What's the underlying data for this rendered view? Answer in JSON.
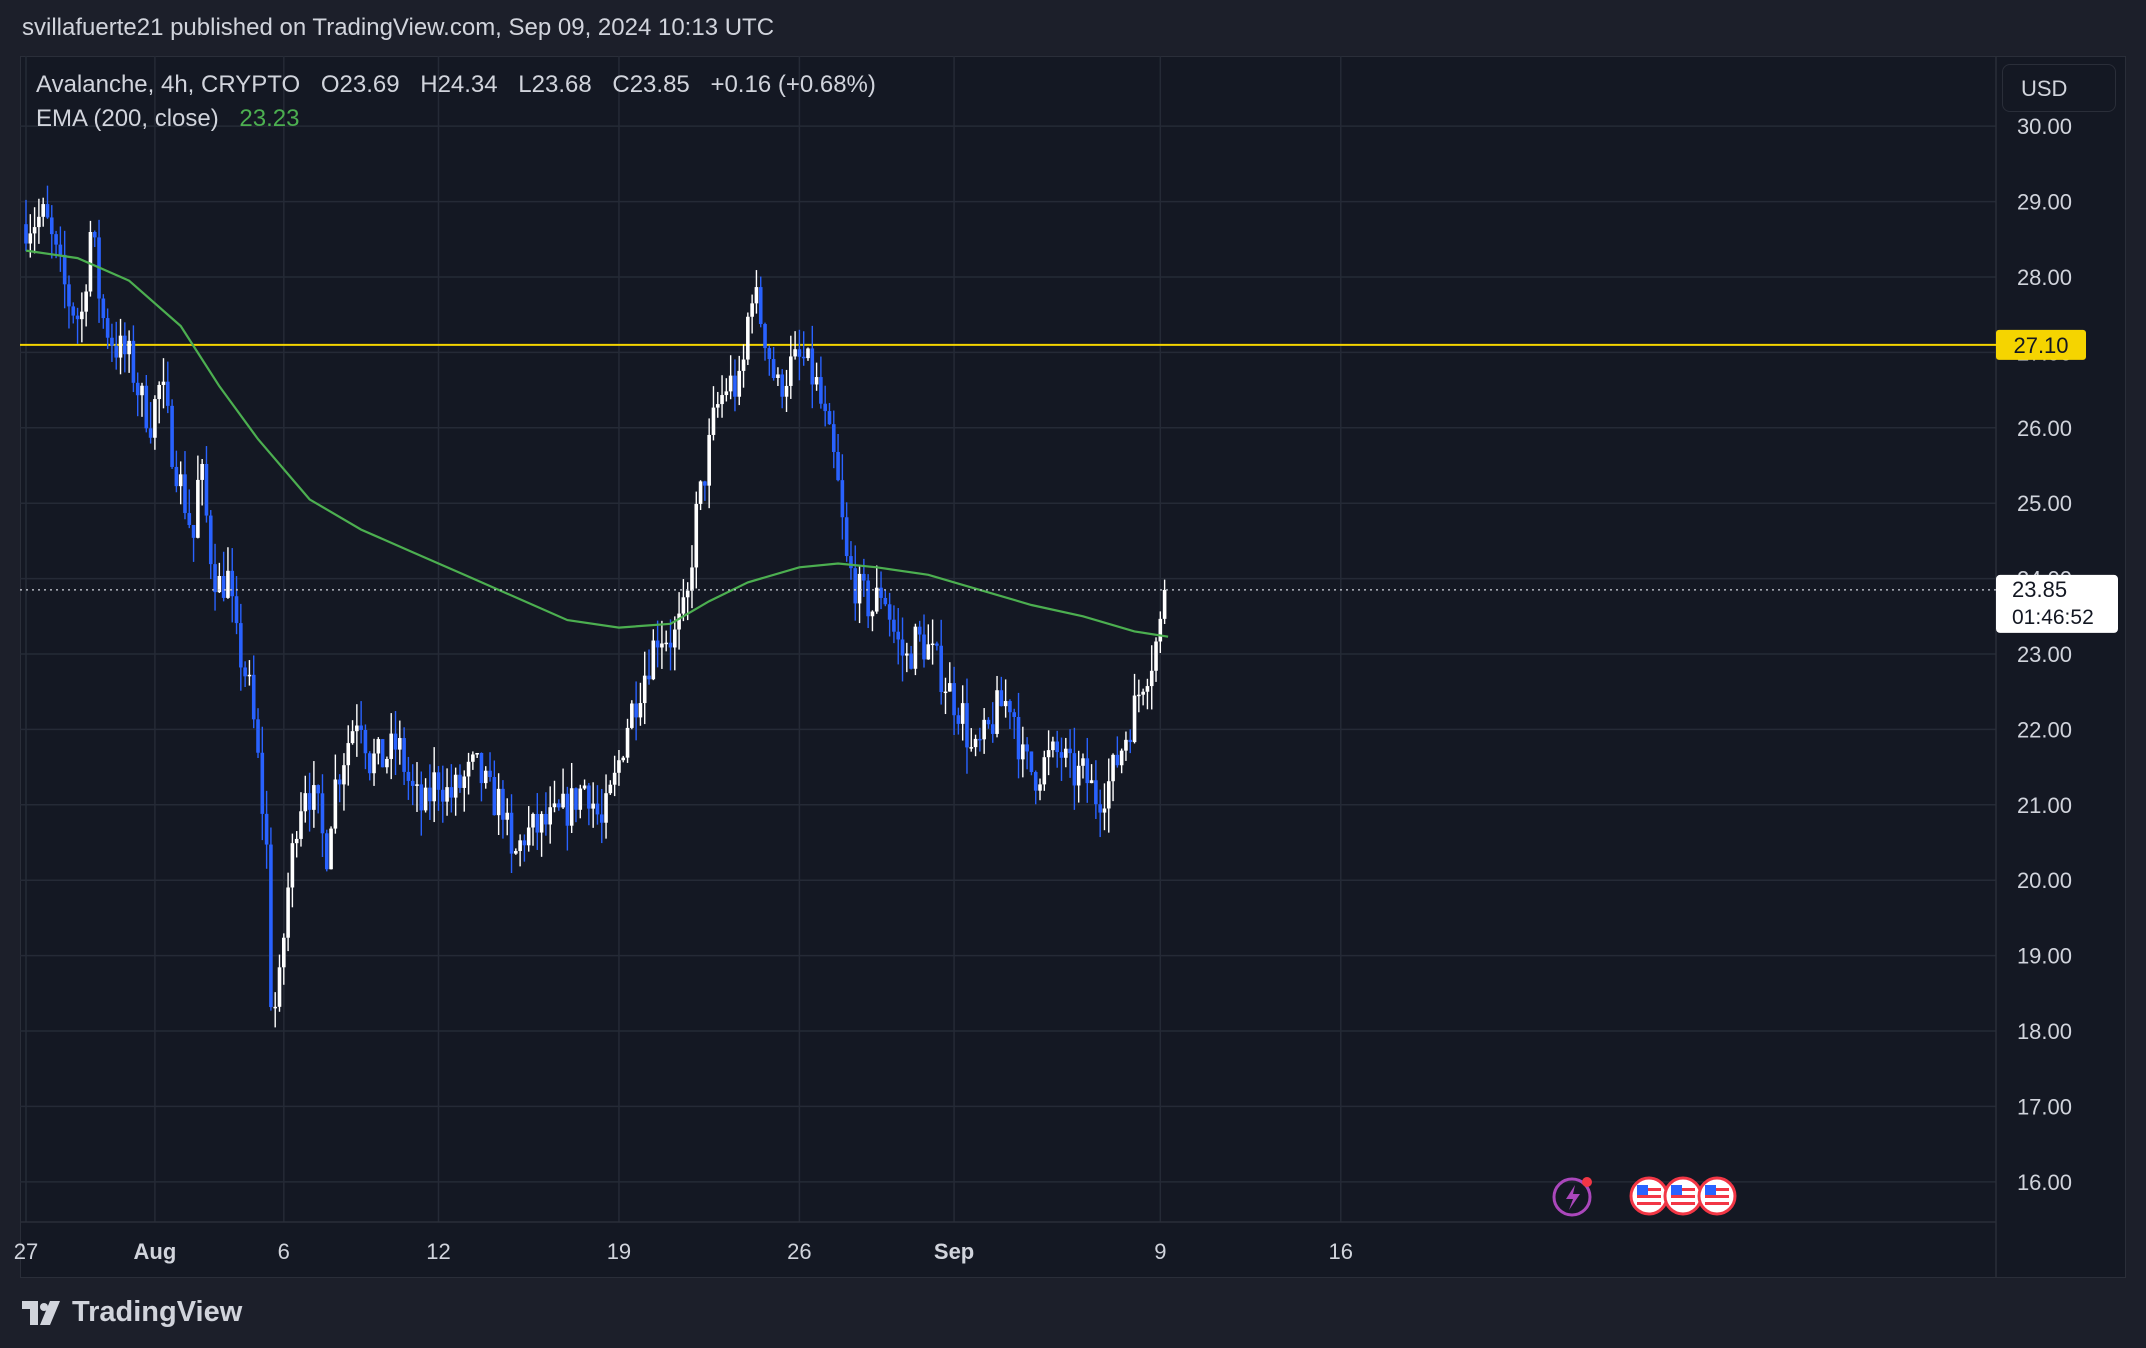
{
  "header": {
    "published": "svillafuerte21 published on TradingView.com, Sep 09, 2024 10:13 UTC"
  },
  "legend": {
    "symbol": "Avalanche, 4h, CRYPTO",
    "open": "O23.69",
    "high": "H24.34",
    "low": "L23.68",
    "close": "C23.85",
    "change": "+0.16 (+0.68%)",
    "ema_label": "EMA (200, close)",
    "ema_value": "23.23"
  },
  "currency": "USD",
  "price_label": "23.85",
  "countdown": "01:46:52",
  "level_label": "27.10",
  "footer": {
    "brand": "TradingView"
  },
  "colors": {
    "background": "#141823",
    "up_candle": "#ffffff",
    "down_candle": "#2962ff",
    "ema": "#4caf50",
    "level": "#f5d400"
  },
  "chart_data": {
    "type": "candlestick",
    "symbol": "Avalanche",
    "interval": "4h",
    "ylim": [
      15.6,
      30.4
    ],
    "y_ticks": [
      "16.00",
      "17.00",
      "18.00",
      "19.00",
      "20.00",
      "21.00",
      "22.00",
      "23.00",
      "24.00",
      "25.00",
      "26.00",
      "27.00",
      "28.00",
      "29.00",
      "30.00"
    ],
    "x_ticks": [
      {
        "label": "27",
        "day": 0
      },
      {
        "label": "Aug",
        "day": 5
      },
      {
        "label": "6",
        "day": 10
      },
      {
        "label": "12",
        "day": 16
      },
      {
        "label": "19",
        "day": 23
      },
      {
        "label": "26",
        "day": 30
      },
      {
        "label": "Sep",
        "day": 36
      },
      {
        "label": "9",
        "day": 44
      },
      {
        "label": "16",
        "day": 51
      }
    ],
    "horizontal_level": 27.1,
    "last_price": 23.85,
    "price_path": [
      [
        0.0,
        28.7
      ],
      [
        0.9,
        28.8
      ],
      [
        1.3,
        28.3
      ],
      [
        1.8,
        27.7
      ],
      [
        2.3,
        27.4
      ],
      [
        2.7,
        28.7
      ],
      [
        3.1,
        27.5
      ],
      [
        3.6,
        27.1
      ],
      [
        4.2,
        26.9
      ],
      [
        4.6,
        26.4
      ],
      [
        5.0,
        26.1
      ],
      [
        5.4,
        26.6
      ],
      [
        5.8,
        25.8
      ],
      [
        6.2,
        25.2
      ],
      [
        6.7,
        24.5
      ],
      [
        6.9,
        25.6
      ],
      [
        7.3,
        24.4
      ],
      [
        7.6,
        23.9
      ],
      [
        8.0,
        24.0
      ],
      [
        8.3,
        23.2
      ],
      [
        8.8,
        22.6
      ],
      [
        9.1,
        21.8
      ],
      [
        9.5,
        20.4
      ],
      [
        9.7,
        18.1
      ],
      [
        10.0,
        18.6
      ],
      [
        10.3,
        19.8
      ],
      [
        10.7,
        20.9
      ],
      [
        11.0,
        21.3
      ],
      [
        11.5,
        20.9
      ],
      [
        11.8,
        20.3
      ],
      [
        12.1,
        21.2
      ],
      [
        12.7,
        21.9
      ],
      [
        13.1,
        22.3
      ],
      [
        13.5,
        21.6
      ],
      [
        14.0,
        21.6
      ],
      [
        14.6,
        21.8
      ],
      [
        15.1,
        21.2
      ],
      [
        15.6,
        20.9
      ],
      [
        16.1,
        21.4
      ],
      [
        16.6,
        21.1
      ],
      [
        17.1,
        21.3
      ],
      [
        17.6,
        21.5
      ],
      [
        18.2,
        21.1
      ],
      [
        18.7,
        21.0
      ],
      [
        19.0,
        20.2
      ],
      [
        19.5,
        20.6
      ],
      [
        20.1,
        20.7
      ],
      [
        20.7,
        20.8
      ],
      [
        21.3,
        21.0
      ],
      [
        21.9,
        21.3
      ],
      [
        22.5,
        20.7
      ],
      [
        23.0,
        21.3
      ],
      [
        23.5,
        22.1
      ],
      [
        23.9,
        22.5
      ],
      [
        24.3,
        22.9
      ],
      [
        24.7,
        23.3
      ],
      [
        25.3,
        23.2
      ],
      [
        25.8,
        23.6
      ],
      [
        26.1,
        24.7
      ],
      [
        26.5,
        25.4
      ],
      [
        26.9,
        26.2
      ],
      [
        27.4,
        26.6
      ],
      [
        27.9,
        26.5
      ],
      [
        28.3,
        27.9
      ],
      [
        28.8,
        27.3
      ],
      [
        29.3,
        26.5
      ],
      [
        29.8,
        26.8
      ],
      [
        30.3,
        26.9
      ],
      [
        30.8,
        26.6
      ],
      [
        31.2,
        26.0
      ],
      [
        31.6,
        25.4
      ],
      [
        32.0,
        24.2
      ],
      [
        32.5,
        23.8
      ],
      [
        33.0,
        23.6
      ],
      [
        33.4,
        23.9
      ],
      [
        33.9,
        23.2
      ],
      [
        34.3,
        22.9
      ],
      [
        34.7,
        23.2
      ],
      [
        35.1,
        23.1
      ],
      [
        35.6,
        22.8
      ],
      [
        36.0,
        22.5
      ],
      [
        36.5,
        22.2
      ],
      [
        36.9,
        21.6
      ],
      [
        37.4,
        21.9
      ],
      [
        37.9,
        22.3
      ],
      [
        38.4,
        22.4
      ],
      [
        38.8,
        21.6
      ],
      [
        39.3,
        21.4
      ],
      [
        39.8,
        21.6
      ],
      [
        40.3,
        21.7
      ],
      [
        40.7,
        21.4
      ],
      [
        41.2,
        21.4
      ],
      [
        41.7,
        21.1
      ],
      [
        42.2,
        21.3
      ],
      [
        42.6,
        21.7
      ],
      [
        43.1,
        22.2
      ],
      [
        43.5,
        22.7
      ],
      [
        43.9,
        23.0
      ],
      [
        44.2,
        23.4
      ],
      [
        44.3,
        23.85
      ]
    ],
    "ema_200": [
      [
        0.0,
        28.35
      ],
      [
        2.0,
        28.25
      ],
      [
        4.0,
        27.95
      ],
      [
        6.0,
        27.35
      ],
      [
        7.5,
        26.55
      ],
      [
        9.0,
        25.85
      ],
      [
        11.0,
        25.05
      ],
      [
        13.0,
        24.65
      ],
      [
        15.0,
        24.35
      ],
      [
        17.0,
        24.05
      ],
      [
        19.0,
        23.75
      ],
      [
        21.0,
        23.45
      ],
      [
        23.0,
        23.35
      ],
      [
        25.0,
        23.4
      ],
      [
        26.5,
        23.7
      ],
      [
        28.0,
        23.95
      ],
      [
        30.0,
        24.15
      ],
      [
        31.5,
        24.2
      ],
      [
        33.0,
        24.15
      ],
      [
        35.0,
        24.05
      ],
      [
        37.0,
        23.85
      ],
      [
        39.0,
        23.65
      ],
      [
        41.0,
        23.5
      ],
      [
        43.0,
        23.3
      ],
      [
        44.3,
        23.23
      ]
    ]
  }
}
